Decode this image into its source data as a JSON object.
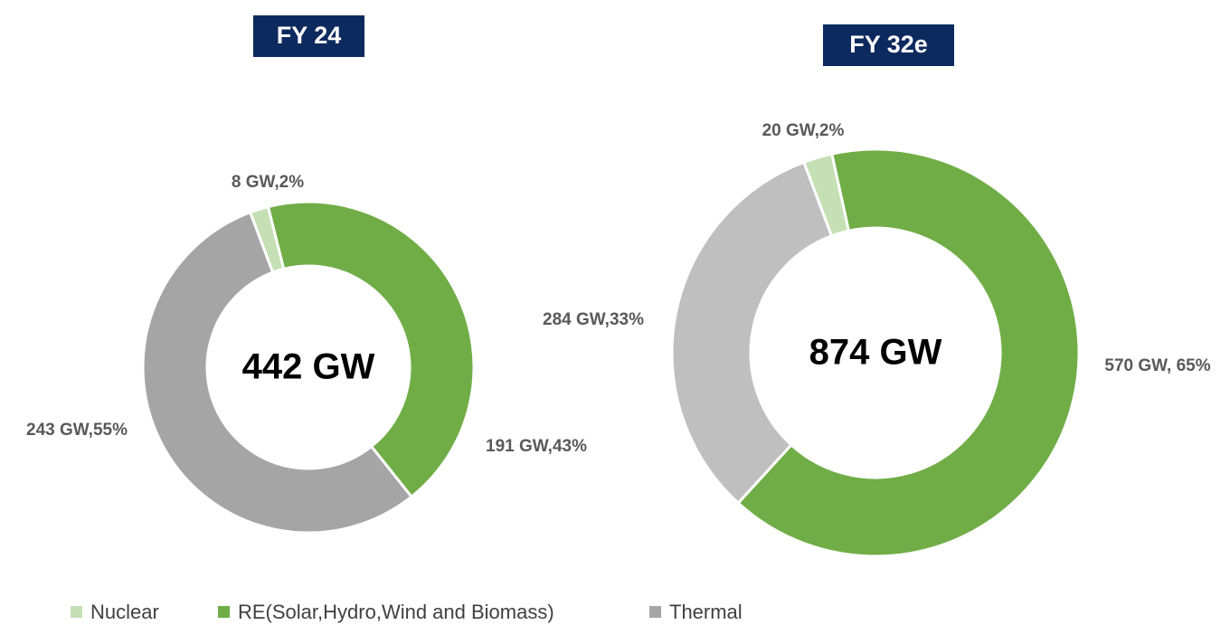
{
  "chart_data": [
    {
      "type": "donut",
      "title": "FY 24",
      "center_label": "442 GW",
      "categories": [
        "Nuclear",
        "RE(Solar,Hydro,Wind and Biomass)",
        "Thermal"
      ],
      "values": [
        8,
        191,
        243
      ],
      "value_labels": [
        "8 GW,2%",
        "191 GW,43%",
        "243 GW,55%"
      ],
      "colors": [
        "#c5e0b4",
        "#70ad47",
        "#a5a5a5"
      ],
      "legend": "bottom"
    },
    {
      "type": "donut",
      "title": "FY 32e",
      "center_label": "874 GW",
      "categories": [
        "Nuclear",
        "RE(Solar,Hydro,Wind and Biomass)",
        "Thermal"
      ],
      "values": [
        20,
        570,
        284
      ],
      "value_labels": [
        "20 GW,2%",
        "570 GW, 65%",
        "284 GW,33%"
      ],
      "colors": [
        "#c5e0b4",
        "#70ad47",
        "#bfbfbf"
      ]
    }
  ]
}
